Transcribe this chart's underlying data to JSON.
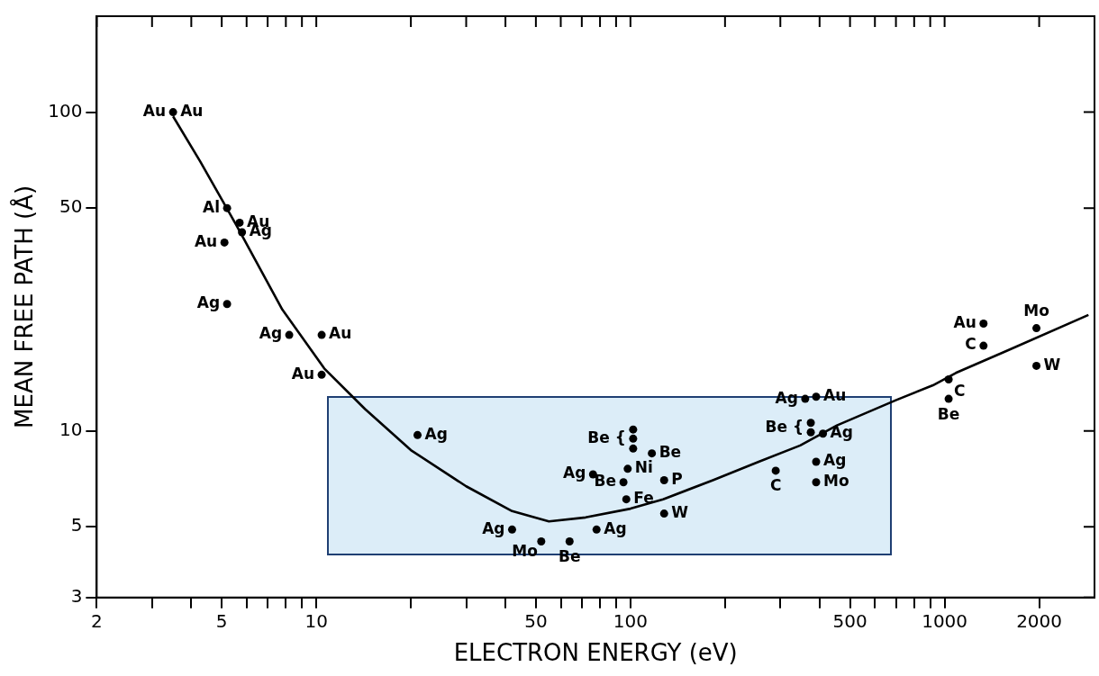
{
  "chart_data": {
    "type": "scatter",
    "xlabel": "ELECTRON ENERGY (eV)",
    "ylabel": "MEAN FREE PATH (Å)",
    "log": "xy",
    "grid": false,
    "legend": false,
    "marker": "circle",
    "xlim": [
      2,
      3000
    ],
    "ylim": [
      3,
      200
    ],
    "xticks": [
      2,
      {
        "value": 3,
        "label": null
      },
      {
        "value": 4,
        "label": null
      },
      5,
      {
        "value": 6,
        "label": null
      },
      {
        "value": 7,
        "label": null
      },
      {
        "value": 8,
        "label": null
      },
      {
        "value": 9,
        "label": null
      },
      10,
      {
        "value": 20,
        "label": null
      },
      {
        "value": 30,
        "label": null
      },
      {
        "value": 40,
        "label": null
      },
      50,
      {
        "value": 60,
        "label": null
      },
      {
        "value": 70,
        "label": null
      },
      {
        "value": 80,
        "label": null
      },
      {
        "value": 90,
        "label": null
      },
      100,
      {
        "value": 200,
        "label": null
      },
      {
        "value": 300,
        "label": null
      },
      {
        "value": 400,
        "label": null
      },
      500,
      {
        "value": 600,
        "label": null
      },
      {
        "value": 700,
        "label": null
      },
      {
        "value": 800,
        "label": null
      },
      {
        "value": 900,
        "label": null
      },
      1000,
      2000
    ],
    "yticks": [
      3,
      5,
      10,
      50,
      100
    ],
    "series": [
      {
        "type": "scatter",
        "color": "#000000",
        "x": [
          3.5,
          5.2,
          5.7,
          5.1,
          5.8,
          5.2,
          8.2,
          10.4,
          10.4,
          21,
          102,
          102,
          102,
          117,
          76,
          98,
          95,
          97,
          128,
          128,
          42,
          52,
          64,
          78,
          360,
          390,
          375,
          375,
          410,
          390,
          390,
          290,
          1030,
          1030,
          1330,
          1330,
          1960,
          1960
        ],
        "values": [
          100,
          50,
          45,
          39,
          42,
          25,
          20,
          20,
          15,
          9.7,
          10.1,
          9.45,
          8.8,
          8.5,
          7.3,
          7.6,
          6.9,
          6.1,
          7.0,
          5.5,
          4.9,
          4.5,
          4.5,
          4.9,
          12.6,
          12.8,
          10.6,
          9.9,
          9.8,
          8.0,
          6.9,
          7.5,
          14.5,
          12.6,
          21.7,
          18.5,
          21,
          16
        ]
      },
      {
        "type": "line",
        "color": "#000000",
        "marker": "none",
        "x": [
          3.5,
          4.27,
          5.58,
          7.8,
          10.6,
          14.3,
          20,
          30,
          42,
          55,
          72,
          100,
          127,
          183,
          256,
          347,
          454,
          702,
          918,
          1086,
          1571,
          2870
        ],
        "values": [
          97,
          70,
          44,
          24,
          15.7,
          11.7,
          8.7,
          6.7,
          5.6,
          5.2,
          5.35,
          5.7,
          6.1,
          7.0,
          8.0,
          9.0,
          10.4,
          12.5,
          13.9,
          15.2,
          17.8,
          23.1
        ]
      }
    ],
    "annotations": [
      {
        "text": "Au",
        "x": 3.5,
        "y": 100
      },
      {
        "text": "Au",
        "x": 3.5,
        "y": 100
      },
      {
        "text": "Al",
        "x": 5.2,
        "y": 50
      },
      {
        "text": "Au",
        "x": 5.7,
        "y": 45
      },
      {
        "text": "Au",
        "x": 5.1,
        "y": 39
      },
      {
        "text": "Ag",
        "x": 5.8,
        "y": 42
      },
      {
        "text": "Ag",
        "x": 5.2,
        "y": 25
      },
      {
        "text": "Ag",
        "x": 8.2,
        "y": 20
      },
      {
        "text": "Au",
        "x": 10.4,
        "y": 20
      },
      {
        "text": "Au",
        "x": 10.4,
        "y": 15
      },
      {
        "text": "Ag",
        "x": 21,
        "y": 9.7
      },
      {
        "text": "Be {",
        "x": 102,
        "y": 9.45
      },
      {
        "text": "Be",
        "x": 117,
        "y": 8.5
      },
      {
        "text": "Ag",
        "x": 76,
        "y": 7.3
      },
      {
        "text": "Ni",
        "x": 98,
        "y": 7.6
      },
      {
        "text": "Be",
        "x": 95,
        "y": 6.9
      },
      {
        "text": "Fe",
        "x": 97,
        "y": 6.1
      },
      {
        "text": "P",
        "x": 128,
        "y": 7.0
      },
      {
        "text": "W",
        "x": 128,
        "y": 5.5
      },
      {
        "text": "Ag",
        "x": 42,
        "y": 4.9
      },
      {
        "text": "Mo",
        "x": 52,
        "y": 4.5
      },
      {
        "text": "Be",
        "x": 64,
        "y": 4.5
      },
      {
        "text": "Ag",
        "x": 78,
        "y": 4.9
      },
      {
        "text": "Ag",
        "x": 360,
        "y": 12.6
      },
      {
        "text": "Au",
        "x": 390,
        "y": 12.8
      },
      {
        "text": "Be {",
        "x": 375,
        "y": 10.2
      },
      {
        "text": "Ag",
        "x": 410,
        "y": 9.8
      },
      {
        "text": "Ag",
        "x": 390,
        "y": 8.0
      },
      {
        "text": "Mo",
        "x": 390,
        "y": 6.9
      },
      {
        "text": "C",
        "x": 290,
        "y": 7.5
      },
      {
        "text": "C",
        "x": 1030,
        "y": 14.5
      },
      {
        "text": "Be",
        "x": 1030,
        "y": 12.6
      },
      {
        "text": "Au",
        "x": 1330,
        "y": 21.7
      },
      {
        "text": "C",
        "x": 1330,
        "y": 18.5
      },
      {
        "text": "Mo",
        "x": 1960,
        "y": 21
      },
      {
        "text": "W",
        "x": 1960,
        "y": 16
      }
    ]
  }
}
